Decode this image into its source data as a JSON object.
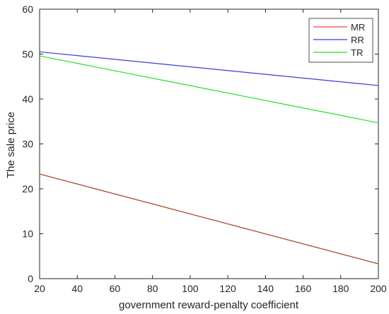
{
  "chart_data": {
    "type": "line",
    "xlabel": "government reward-penalty coefficient",
    "ylabel": "The sale price",
    "xlim": [
      20,
      200
    ],
    "ylim": [
      0,
      60
    ],
    "xticks": [
      20,
      40,
      60,
      80,
      100,
      120,
      140,
      160,
      180,
      200
    ],
    "yticks": [
      0,
      10,
      20,
      30,
      40,
      50,
      60
    ],
    "grid": false,
    "legend_position": "top-right",
    "series": [
      {
        "name": "MR",
        "color": "#ff4040",
        "x": [
          20,
          200
        ],
        "y": [
          23.3,
          3.3
        ]
      },
      {
        "name": "RR",
        "color": "#3b3bdc",
        "x": [
          20,
          200
        ],
        "y": [
          50.5,
          43.0
        ]
      },
      {
        "name": "TR",
        "color": "#22e022",
        "x": [
          20,
          200
        ],
        "y": [
          49.6,
          34.7
        ]
      }
    ],
    "overlay_line": {
      "color": "#a0522d",
      "x": [
        20,
        200
      ],
      "y": [
        23.3,
        3.3
      ]
    }
  }
}
